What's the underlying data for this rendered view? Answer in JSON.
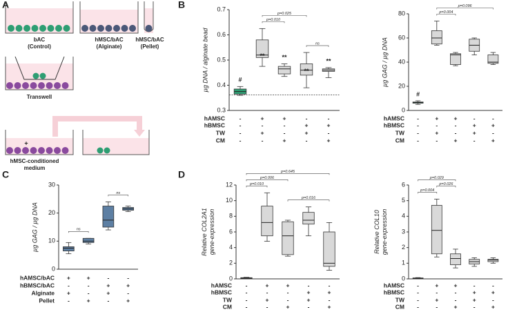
{
  "panel_labels": [
    "A",
    "B",
    "C",
    "D"
  ],
  "schematic": {
    "wells": [
      [
        "bAC",
        "(Control)"
      ],
      [
        "hMSC/bAC",
        "(Alginate)"
      ],
      [
        "hMSC/bAC",
        "(Pellet)"
      ]
    ],
    "transwell": "Transwell",
    "conditioned": [
      "hMSC-conditioned",
      "medium"
    ],
    "plus": "+"
  },
  "chart_data": [
    {
      "type": "box",
      "ylabel": [
        "µg DNA / alginate bead"
      ],
      "ylim": [
        0.3,
        0.7
      ],
      "yticks": [
        0.3,
        0.4,
        0.5,
        0.6,
        0.7
      ],
      "reference_line": 0.362,
      "boxes": [
        {
          "min": 0.36,
          "q1": 0.365,
          "median": 0.375,
          "q3": 0.385,
          "max": 0.395,
          "color": "#2e9e73",
          "annotation": "#"
        },
        {
          "min": 0.475,
          "q1": 0.51,
          "median": 0.52,
          "q3": 0.58,
          "max": 0.625,
          "color": "#d9d9d9",
          "annotation": "**"
        },
        {
          "min": 0.435,
          "q1": 0.445,
          "median": 0.465,
          "q3": 0.475,
          "max": 0.485,
          "color": "#d9d9d9",
          "annotation": "**"
        },
        {
          "min": 0.39,
          "q1": 0.44,
          "median": 0.46,
          "q3": 0.485,
          "max": 0.53,
          "color": "#d9d9d9",
          "annotation": "**"
        },
        {
          "min": 0.43,
          "q1": 0.455,
          "median": 0.46,
          "q3": 0.465,
          "max": 0.47,
          "color": "#d9d9d9",
          "annotation": "**"
        }
      ],
      "brackets": [
        {
          "groups": [
            1,
            2
          ],
          "label": "p=0.010"
        },
        {
          "groups": [
            3,
            4
          ],
          "label": "ns"
        },
        {
          "groups": [
            1,
            3
          ],
          "label": "p=0.025"
        }
      ],
      "conditions": [
        {
          "name": "hAMSC",
          "signs": [
            "-",
            "+",
            "+",
            "-",
            "-"
          ]
        },
        {
          "name": "hBMSC",
          "signs": [
            "-",
            "-",
            "-",
            "+",
            "+"
          ]
        },
        {
          "name": "TW",
          "signs": [
            "-",
            "+",
            "-",
            "+",
            "-"
          ]
        },
        {
          "name": "CM",
          "signs": [
            "-",
            "-",
            "+",
            "-",
            "+"
          ]
        }
      ]
    },
    {
      "type": "box",
      "ylabel": [
        "µg GAG / µg DNA"
      ],
      "ylim": [
        0,
        80
      ],
      "yticks": [
        0,
        20,
        40,
        60,
        80
      ],
      "boxes": [
        {
          "min": 5,
          "q1": 6,
          "median": 6.5,
          "q3": 7,
          "max": 8,
          "color": "#2e9e73",
          "annotation": "#"
        },
        {
          "min": 54,
          "q1": 55,
          "median": 60,
          "q3": 66,
          "max": 74,
          "color": "#d9d9d9"
        },
        {
          "min": 37,
          "q1": 38,
          "median": 46,
          "q3": 47,
          "max": 48,
          "color": "#d9d9d9"
        },
        {
          "min": 46,
          "q1": 49,
          "median": 54,
          "q3": 59,
          "max": 60,
          "color": "#d9d9d9"
        },
        {
          "min": 38,
          "q1": 39,
          "median": 40,
          "q3": 46,
          "max": 48,
          "color": "#d9d9d9"
        }
      ],
      "brackets": [
        {
          "groups": [
            1,
            2
          ],
          "label": "p=0.004"
        },
        {
          "groups": [
            1,
            4
          ],
          "label": "p=0.096"
        }
      ],
      "conditions": [
        {
          "name": "hAMSC",
          "signs": [
            "-",
            "+",
            "+",
            "-",
            "-"
          ]
        },
        {
          "name": "hBMSC",
          "signs": [
            "-",
            "-",
            "-",
            "+",
            "+"
          ]
        },
        {
          "name": "TW",
          "signs": [
            "-",
            "+",
            "-",
            "+",
            "-"
          ]
        },
        {
          "name": "CM",
          "signs": [
            "-",
            "-",
            "+",
            "-",
            "+"
          ]
        }
      ]
    },
    {
      "type": "box",
      "ylabel": [
        "µg GAG / µg DNA"
      ],
      "ylim": [
        0,
        30
      ],
      "yticks": [
        0,
        10,
        20,
        30
      ],
      "boxes": [
        {
          "min": 5.5,
          "q1": 6.5,
          "median": 7.5,
          "q3": 8,
          "max": 9.5,
          "color": "#5d7fa3"
        },
        {
          "min": 9,
          "q1": 9.5,
          "median": 10,
          "q3": 11,
          "max": 11,
          "color": "#5d7fa3"
        },
        {
          "min": 14,
          "q1": 15,
          "median": 17.5,
          "q3": 22.5,
          "max": 24,
          "color": "#5d7fa3"
        },
        {
          "min": 20.5,
          "q1": 21,
          "median": 21.5,
          "q3": 22,
          "max": 22.5,
          "color": "#5d7fa3"
        }
      ],
      "brackets": [
        {
          "groups": [
            0,
            1
          ],
          "label": "ns"
        },
        {
          "groups": [
            2,
            3
          ],
          "label": "ns"
        }
      ],
      "conditions": [
        {
          "name": "hAMSC/bAC",
          "signs": [
            "+",
            "+",
            "-",
            "-"
          ]
        },
        {
          "name": "hBMSC/bAC",
          "signs": [
            "-",
            "-",
            "+",
            "+"
          ]
        },
        {
          "name": "Alginate",
          "signs": [
            "+",
            "-",
            "+",
            "-"
          ]
        },
        {
          "name": "Pellet",
          "signs": [
            "-",
            "+",
            "-",
            "+"
          ]
        }
      ]
    },
    {
      "type": "box",
      "ylabel": [
        "Relative COL2A1",
        "gene-expression"
      ],
      "ylim": [
        0,
        12
      ],
      "yticks": [
        0,
        2,
        4,
        6,
        8,
        10,
        12
      ],
      "boxes": [
        {
          "min": 0,
          "q1": 0.05,
          "median": 0.1,
          "q3": 0.15,
          "max": 0.2,
          "color": "#d9d9d9"
        },
        {
          "min": 4.8,
          "q1": 5.5,
          "median": 7.2,
          "q3": 9.3,
          "max": 11,
          "color": "#d9d9d9"
        },
        {
          "min": 2.9,
          "q1": 3.1,
          "median": 5.5,
          "q3": 7.3,
          "max": 7.5,
          "color": "#d9d9d9"
        },
        {
          "min": 5.5,
          "q1": 7,
          "median": 7.5,
          "q3": 8.5,
          "max": 9.2,
          "color": "#d9d9d9"
        },
        {
          "min": 1.1,
          "q1": 1.6,
          "median": 2,
          "q3": 6,
          "max": 7.2,
          "color": "#d9d9d9"
        }
      ],
      "brackets": [
        {
          "groups": [
            0,
            1
          ],
          "label": "p=0.010"
        },
        {
          "groups": [
            2,
            4
          ],
          "label": "p=0.016"
        },
        {
          "groups": [
            0,
            2
          ],
          "label": "p=0.006"
        },
        {
          "groups": [
            0,
            4
          ],
          "label": "p=0.645"
        }
      ],
      "conditions": [
        {
          "name": "hAMSC",
          "signs": [
            "-",
            "+",
            "+",
            "-",
            "-"
          ]
        },
        {
          "name": "hBMSC",
          "signs": [
            "-",
            "-",
            "-",
            "+",
            "+"
          ]
        },
        {
          "name": "TW",
          "signs": [
            "-",
            "+",
            "-",
            "+",
            "-"
          ]
        },
        {
          "name": "CM",
          "signs": [
            "-",
            "-",
            "+",
            "-",
            "+"
          ]
        }
      ]
    },
    {
      "type": "box",
      "ylabel": [
        "Relative COL10",
        "gene-expression"
      ],
      "ylim": [
        0,
        6
      ],
      "yticks": [
        0,
        1,
        2,
        3,
        4,
        5,
        6
      ],
      "boxes": [
        {
          "min": 0,
          "q1": 0.02,
          "median": 0.04,
          "q3": 0.06,
          "max": 0.08,
          "color": "#d9d9d9"
        },
        {
          "min": 1.4,
          "q1": 1.6,
          "median": 3.1,
          "q3": 4.7,
          "max": 5.1,
          "color": "#d9d9d9"
        },
        {
          "min": 0.7,
          "q1": 0.9,
          "median": 1.3,
          "q3": 1.6,
          "max": 1.9,
          "color": "#d9d9d9"
        },
        {
          "min": 0.8,
          "q1": 0.95,
          "median": 1.1,
          "q3": 1.25,
          "max": 1.35,
          "color": "#d9d9d9"
        },
        {
          "min": 1,
          "q1": 1.1,
          "median": 1.2,
          "q3": 1.25,
          "max": 1.35,
          "color": "#d9d9d9"
        }
      ],
      "brackets": [
        {
          "groups": [
            0,
            1
          ],
          "label": "p=0.004"
        },
        {
          "groups": [
            1,
            2
          ],
          "label": "p=0.026"
        },
        {
          "groups": [
            0,
            2
          ],
          "label": "p=0.029"
        }
      ],
      "conditions": [
        {
          "name": "hAMSC",
          "signs": [
            "-",
            "+",
            "+",
            "-",
            "-"
          ]
        },
        {
          "name": "hBMSC",
          "signs": [
            "-",
            "-",
            "-",
            "+",
            "+"
          ]
        },
        {
          "name": "TW",
          "signs": [
            "-",
            "+",
            "-",
            "+",
            "-"
          ]
        },
        {
          "name": "CM",
          "signs": [
            "-",
            "-",
            "+",
            "-",
            "+"
          ]
        }
      ]
    }
  ]
}
